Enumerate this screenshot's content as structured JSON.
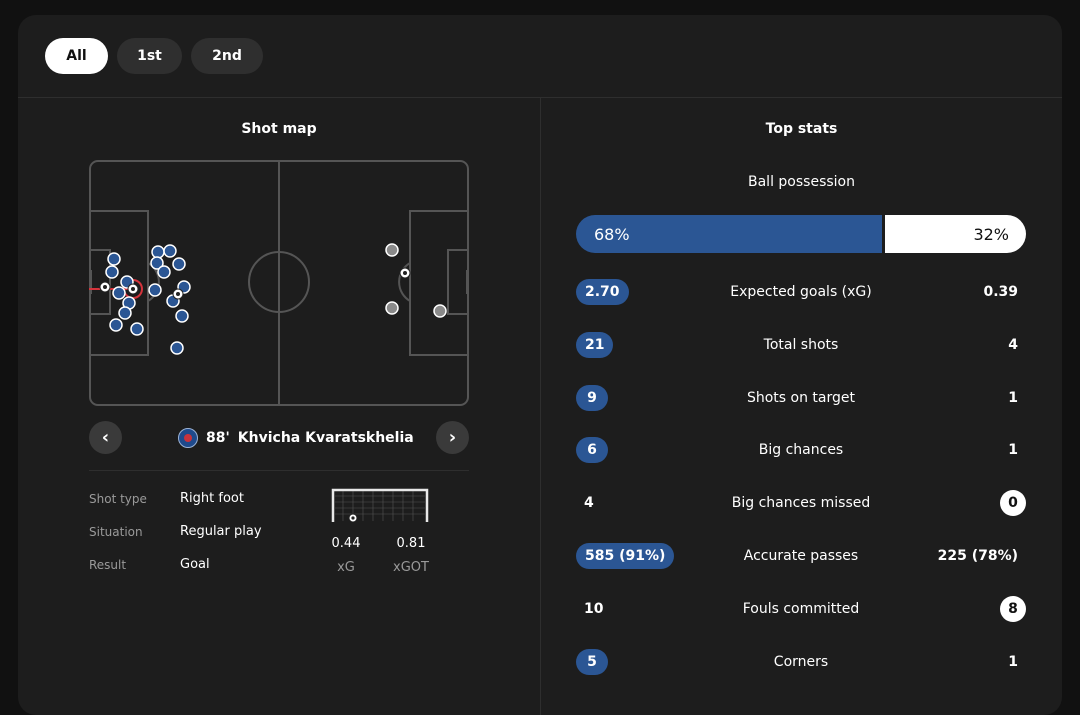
{
  "tabs": [
    {
      "label": "All",
      "active": true
    },
    {
      "label": "1st",
      "active": false
    },
    {
      "label": "2nd",
      "active": false
    }
  ],
  "shot_map": {
    "title": "Shot map",
    "selected_shot": {
      "minute": "88'",
      "player": "Khvicha Kvaratskhelia",
      "team_logo": "psg-crest-icon",
      "details": [
        {
          "label": "Shot type",
          "value": "Right foot"
        },
        {
          "label": "Situation",
          "value": "Regular play"
        },
        {
          "label": "Result",
          "value": "Goal"
        }
      ],
      "xg": {
        "value": "0.44",
        "label": "xG"
      },
      "xgot": {
        "value": "0.81",
        "label": "xGOT"
      }
    },
    "nav": {
      "prev_icon": "chevron-left-icon",
      "next_icon": "chevron-right-icon"
    }
  },
  "top_stats": {
    "title": "Top stats",
    "possession": {
      "label": "Ball possession",
      "home": "68%",
      "away": "32%",
      "home_fraction": 0.68
    },
    "rows": [
      {
        "label": "Expected goals (xG)",
        "home": "2.70",
        "away": "0.39",
        "home_style": "pill",
        "away_style": "plain"
      },
      {
        "label": "Total shots",
        "home": "21",
        "away": "4",
        "home_style": "pill",
        "away_style": "plain"
      },
      {
        "label": "Shots on target",
        "home": "9",
        "away": "1",
        "home_style": "pill",
        "away_style": "plain"
      },
      {
        "label": "Big chances",
        "home": "6",
        "away": "1",
        "home_style": "pill",
        "away_style": "plain"
      },
      {
        "label": "Big chances missed",
        "home": "4",
        "away": "0",
        "home_style": "plain",
        "away_style": "circle"
      },
      {
        "label": "Accurate passes",
        "home": "585 (91%)",
        "away": "225 (78%)",
        "home_style": "pill",
        "away_style": "plain"
      },
      {
        "label": "Fouls committed",
        "home": "10",
        "away": "8",
        "home_style": "plain",
        "away_style": "circle"
      },
      {
        "label": "Corners",
        "home": "5",
        "away": "1",
        "home_style": "pill",
        "away_style": "plain"
      }
    ]
  },
  "colors": {
    "home": "#2b5694",
    "away": "#ffffff",
    "background": "#1d1d1d",
    "pitch_line": "#555555"
  }
}
